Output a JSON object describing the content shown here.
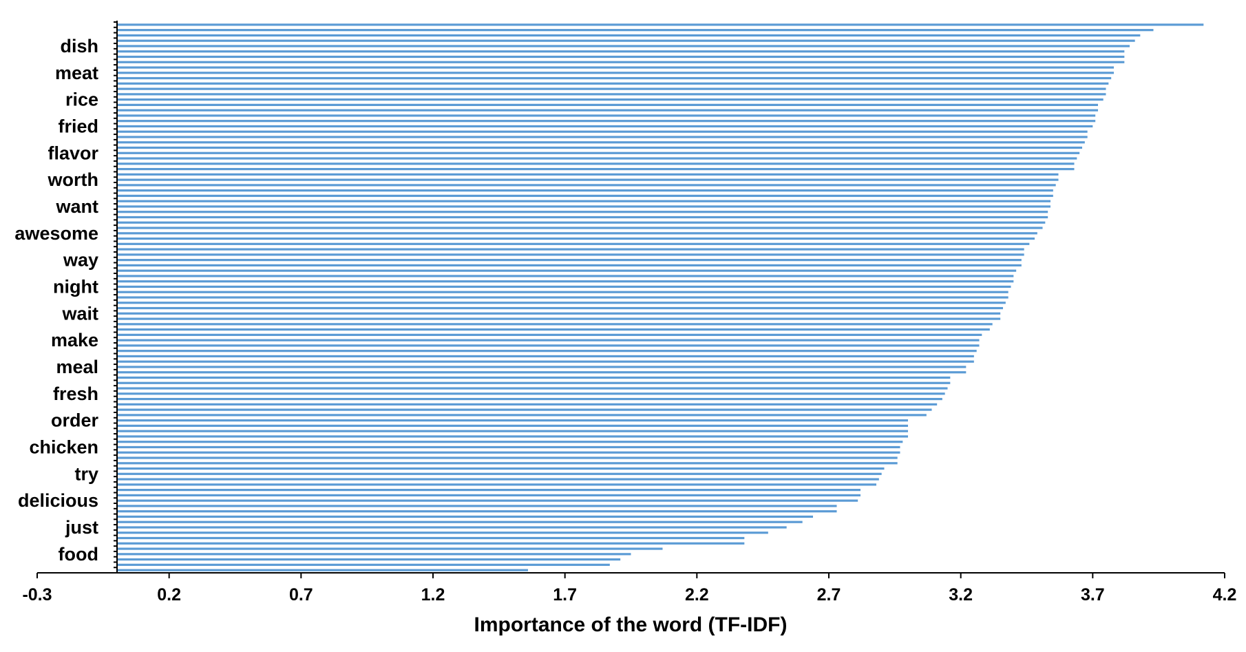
{
  "chart_data": {
    "type": "bar",
    "orientation": "horizontal",
    "xlabel": "Importance of the word (TF-IDF)",
    "xlim": [
      -0.3,
      4.2
    ],
    "xticks": [
      "-0.3",
      "0.2",
      "0.7",
      "1.2",
      "1.7",
      "2.2",
      "2.7",
      "3.2",
      "3.7",
      "4.2"
    ],
    "labeled_categories": [
      {
        "label": "dish",
        "index": 4
      },
      {
        "label": "meat",
        "index": 9
      },
      {
        "label": "rice",
        "index": 14
      },
      {
        "label": "fried",
        "index": 19
      },
      {
        "label": "flavor",
        "index": 24
      },
      {
        "label": "worth",
        "index": 29
      },
      {
        "label": "want",
        "index": 34
      },
      {
        "label": "awesome",
        "index": 39
      },
      {
        "label": "way",
        "index": 44
      },
      {
        "label": "night",
        "index": 49
      },
      {
        "label": "wait",
        "index": 54
      },
      {
        "label": "make",
        "index": 59
      },
      {
        "label": "meal",
        "index": 64
      },
      {
        "label": "fresh",
        "index": 69
      },
      {
        "label": "order",
        "index": 74
      },
      {
        "label": "chicken",
        "index": 79
      },
      {
        "label": "try",
        "index": 84
      },
      {
        "label": "delicious",
        "index": 89
      },
      {
        "label": "just",
        "index": 94
      },
      {
        "label": "food",
        "index": 99
      }
    ],
    "values": [
      4.12,
      3.93,
      3.88,
      3.86,
      3.84,
      3.82,
      3.82,
      3.82,
      3.78,
      3.78,
      3.77,
      3.76,
      3.75,
      3.75,
      3.74,
      3.72,
      3.72,
      3.71,
      3.71,
      3.7,
      3.68,
      3.68,
      3.67,
      3.66,
      3.65,
      3.64,
      3.63,
      3.63,
      3.57,
      3.57,
      3.56,
      3.55,
      3.55,
      3.54,
      3.54,
      3.53,
      3.53,
      3.52,
      3.51,
      3.49,
      3.48,
      3.46,
      3.44,
      3.44,
      3.43,
      3.43,
      3.41,
      3.4,
      3.4,
      3.39,
      3.38,
      3.38,
      3.37,
      3.36,
      3.35,
      3.35,
      3.32,
      3.31,
      3.28,
      3.27,
      3.27,
      3.26,
      3.25,
      3.25,
      3.22,
      3.22,
      3.16,
      3.16,
      3.15,
      3.14,
      3.13,
      3.11,
      3.09,
      3.07,
      3.0,
      3.0,
      3.0,
      3.0,
      2.98,
      2.97,
      2.97,
      2.96,
      2.96,
      2.91,
      2.9,
      2.89,
      2.88,
      2.82,
      2.82,
      2.81,
      2.73,
      2.73,
      2.64,
      2.6,
      2.54,
      2.47,
      2.38,
      2.38,
      2.07,
      1.95,
      1.91,
      1.87,
      1.56
    ]
  }
}
